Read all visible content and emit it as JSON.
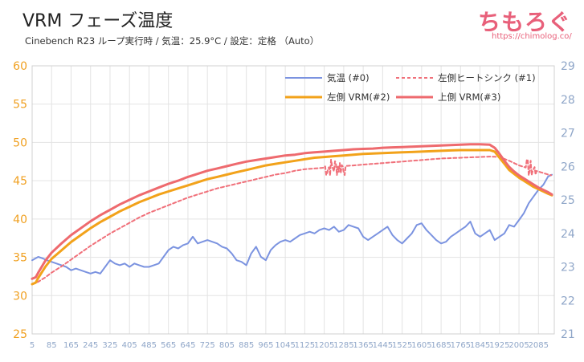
{
  "chart_data": {
    "type": "line",
    "title": "VRM フェーズ温度",
    "subtitle": "Cinebench R23 ループ実行時 / 気温：25.9°C / 設定：定格 （Auto）",
    "watermark": {
      "brand": "ちもろぐ",
      "url": "https://chimolog.co/"
    },
    "xlabel": "",
    "ylabel_left": "",
    "ylabel_right": "",
    "x_ticks": [
      5,
      85,
      165,
      245,
      325,
      405,
      485,
      565,
      645,
      725,
      805,
      885,
      965,
      1045,
      1125,
      1205,
      1285,
      1365,
      1445,
      1525,
      1605,
      1685,
      1765,
      1845,
      1925,
      2005,
      2085
    ],
    "xlim": [
      5,
      2150
    ],
    "ylim_left": [
      25,
      60
    ],
    "y_ticks_left": [
      25,
      30,
      35,
      40,
      45,
      50,
      55,
      60
    ],
    "ylim_right": [
      21,
      29
    ],
    "y_ticks_right": [
      21,
      22,
      23,
      24,
      25,
      26,
      27,
      28,
      29
    ],
    "grid": true,
    "legend_position": "top-right",
    "colors": {
      "ambient": "#7b93e0",
      "heatsink_left": "#f0707a",
      "vrm_left": "#f2a21a",
      "vrm_top": "#ee6a6e",
      "left_axis_text": "#f0a020",
      "right_axis_text": "#8fa6c8",
      "grid": "#e3e3e3",
      "brand": "#e8607a"
    },
    "series": [
      {
        "name": "気温 (#0)",
        "axis": "right",
        "style": "solid",
        "x": [
          5,
          30,
          50,
          65,
          85,
          105,
          125,
          145,
          165,
          185,
          205,
          225,
          245,
          265,
          285,
          305,
          325,
          345,
          365,
          385,
          405,
          425,
          445,
          465,
          485,
          505,
          525,
          545,
          565,
          585,
          605,
          625,
          645,
          665,
          685,
          705,
          725,
          745,
          765,
          785,
          805,
          825,
          845,
          865,
          885,
          905,
          925,
          945,
          965,
          985,
          1005,
          1025,
          1045,
          1065,
          1085,
          1105,
          1125,
          1145,
          1165,
          1185,
          1205,
          1225,
          1245,
          1265,
          1285,
          1305,
          1325,
          1345,
          1365,
          1385,
          1405,
          1425,
          1445,
          1465,
          1485,
          1505,
          1525,
          1545,
          1565,
          1585,
          1605,
          1625,
          1645,
          1665,
          1685,
          1705,
          1725,
          1745,
          1765,
          1785,
          1805,
          1825,
          1845,
          1865,
          1885,
          1905,
          1925,
          1945,
          1965,
          1985,
          2005,
          2025,
          2045,
          2065,
          2085,
          2105,
          2125,
          2140
        ],
        "values": [
          23.2,
          23.3,
          23.25,
          23.2,
          23.15,
          23.1,
          23.05,
          23.0,
          22.9,
          22.95,
          22.9,
          22.85,
          22.8,
          22.85,
          22.8,
          23.0,
          23.2,
          23.1,
          23.05,
          23.1,
          23.0,
          23.1,
          23.05,
          23.0,
          23.0,
          23.05,
          23.1,
          23.3,
          23.5,
          23.6,
          23.55,
          23.65,
          23.7,
          23.9,
          23.7,
          23.75,
          23.8,
          23.75,
          23.7,
          23.6,
          23.55,
          23.4,
          23.2,
          23.15,
          23.05,
          23.4,
          23.6,
          23.3,
          23.2,
          23.5,
          23.65,
          23.75,
          23.8,
          23.75,
          23.85,
          23.95,
          24.0,
          24.05,
          24.0,
          24.1,
          24.15,
          24.1,
          24.2,
          24.05,
          24.1,
          24.25,
          24.2,
          24.15,
          23.9,
          23.8,
          23.9,
          24.0,
          24.1,
          24.2,
          23.95,
          23.8,
          23.7,
          23.85,
          24.0,
          24.25,
          24.3,
          24.1,
          23.95,
          23.8,
          23.7,
          23.75,
          23.9,
          24.0,
          24.1,
          24.2,
          24.35,
          24.0,
          23.9,
          24.0,
          24.1,
          23.8,
          23.9,
          24.0,
          24.25,
          24.2,
          24.4,
          24.6,
          24.9,
          25.1,
          25.3,
          25.45,
          25.7,
          25.75
        ]
      },
      {
        "name": "左側ヒートシンク (#1)",
        "axis": "left",
        "style": "dashed",
        "x": [
          5,
          30,
          60,
          85,
          125,
          165,
          205,
          245,
          285,
          325,
          365,
          405,
          445,
          485,
          525,
          565,
          605,
          645,
          685,
          725,
          765,
          805,
          845,
          885,
          925,
          965,
          1005,
          1045,
          1085,
          1125,
          1165,
          1205,
          1245,
          1285,
          1325,
          1365,
          1405,
          1445,
          1485,
          1525,
          1565,
          1605,
          1645,
          1685,
          1725,
          1765,
          1805,
          1845,
          1885,
          1925,
          1965,
          2005,
          2045,
          2085,
          2125,
          2140
        ],
        "values": [
          31.5,
          31.8,
          32.4,
          33.0,
          33.8,
          34.7,
          35.6,
          36.5,
          37.3,
          38.1,
          38.8,
          39.5,
          40.2,
          40.8,
          41.3,
          41.8,
          42.3,
          42.8,
          43.2,
          43.6,
          44.0,
          44.3,
          44.6,
          44.9,
          45.2,
          45.5,
          45.8,
          46.0,
          46.3,
          46.5,
          46.6,
          46.7,
          46.8,
          46.9,
          47.0,
          47.1,
          47.2,
          47.3,
          47.4,
          47.5,
          47.6,
          47.7,
          47.8,
          47.9,
          47.95,
          48.0,
          48.05,
          48.1,
          48.15,
          48.1,
          47.6,
          47.0,
          46.6,
          46.2,
          45.8,
          45.7
        ],
        "noise_regions": [
          {
            "from": 1205,
            "to": 1290,
            "amplitude": 1.3
          },
          {
            "from": 2035,
            "to": 2075,
            "amplitude": 1.2
          }
        ]
      },
      {
        "name": "左側 VRM(#2)",
        "axis": "left",
        "style": "solid",
        "x": [
          5,
          20,
          30,
          60,
          85,
          125,
          165,
          205,
          245,
          285,
          325,
          365,
          405,
          445,
          485,
          525,
          565,
          605,
          645,
          685,
          725,
          765,
          805,
          845,
          885,
          925,
          965,
          1005,
          1045,
          1085,
          1125,
          1165,
          1205,
          1245,
          1285,
          1325,
          1365,
          1405,
          1445,
          1485,
          1525,
          1565,
          1605,
          1645,
          1685,
          1725,
          1765,
          1805,
          1845,
          1885,
          1905,
          1925,
          1945,
          1965,
          1985,
          2005,
          2025,
          2045,
          2065,
          2085,
          2105,
          2125,
          2140
        ],
        "values": [
          31.5,
          31.7,
          32.3,
          33.8,
          34.8,
          35.9,
          37.0,
          37.9,
          38.8,
          39.6,
          40.3,
          41.0,
          41.6,
          42.2,
          42.7,
          43.2,
          43.6,
          44.0,
          44.4,
          44.8,
          45.2,
          45.5,
          45.8,
          46.1,
          46.4,
          46.7,
          47.0,
          47.2,
          47.4,
          47.6,
          47.8,
          48.0,
          48.1,
          48.2,
          48.3,
          48.4,
          48.5,
          48.55,
          48.6,
          48.65,
          48.7,
          48.75,
          48.8,
          48.85,
          48.9,
          48.95,
          49.0,
          49.0,
          49.0,
          49.0,
          48.8,
          48.0,
          47.2,
          46.4,
          45.9,
          45.4,
          45.0,
          44.6,
          44.2,
          43.9,
          43.6,
          43.3,
          43.1
        ]
      },
      {
        "name": "上側 VRM(#3)",
        "axis": "left",
        "style": "solid",
        "x": [
          5,
          20,
          30,
          60,
          85,
          125,
          165,
          205,
          245,
          285,
          325,
          365,
          405,
          445,
          485,
          525,
          565,
          605,
          645,
          685,
          725,
          765,
          805,
          845,
          885,
          925,
          965,
          1005,
          1045,
          1085,
          1125,
          1165,
          1205,
          1245,
          1285,
          1325,
          1365,
          1405,
          1445,
          1485,
          1525,
          1565,
          1605,
          1645,
          1685,
          1725,
          1765,
          1805,
          1845,
          1885,
          1905,
          1925,
          1945,
          1965,
          1985,
          2005,
          2025,
          2045,
          2065,
          2085,
          2105,
          2125,
          2140
        ],
        "values": [
          32.2,
          32.4,
          33.0,
          34.6,
          35.6,
          36.8,
          37.9,
          38.8,
          39.7,
          40.5,
          41.2,
          41.9,
          42.5,
          43.1,
          43.6,
          44.1,
          44.6,
          45.0,
          45.5,
          45.9,
          46.3,
          46.6,
          46.9,
          47.2,
          47.5,
          47.7,
          47.9,
          48.1,
          48.3,
          48.4,
          48.6,
          48.7,
          48.8,
          48.9,
          49.0,
          49.1,
          49.15,
          49.2,
          49.3,
          49.35,
          49.4,
          49.45,
          49.5,
          49.55,
          49.6,
          49.65,
          49.7,
          49.75,
          49.75,
          49.7,
          49.3,
          48.5,
          47.6,
          46.8,
          46.2,
          45.7,
          45.3,
          44.9,
          44.5,
          44.1,
          43.8,
          43.5,
          43.2
        ]
      }
    ]
  }
}
